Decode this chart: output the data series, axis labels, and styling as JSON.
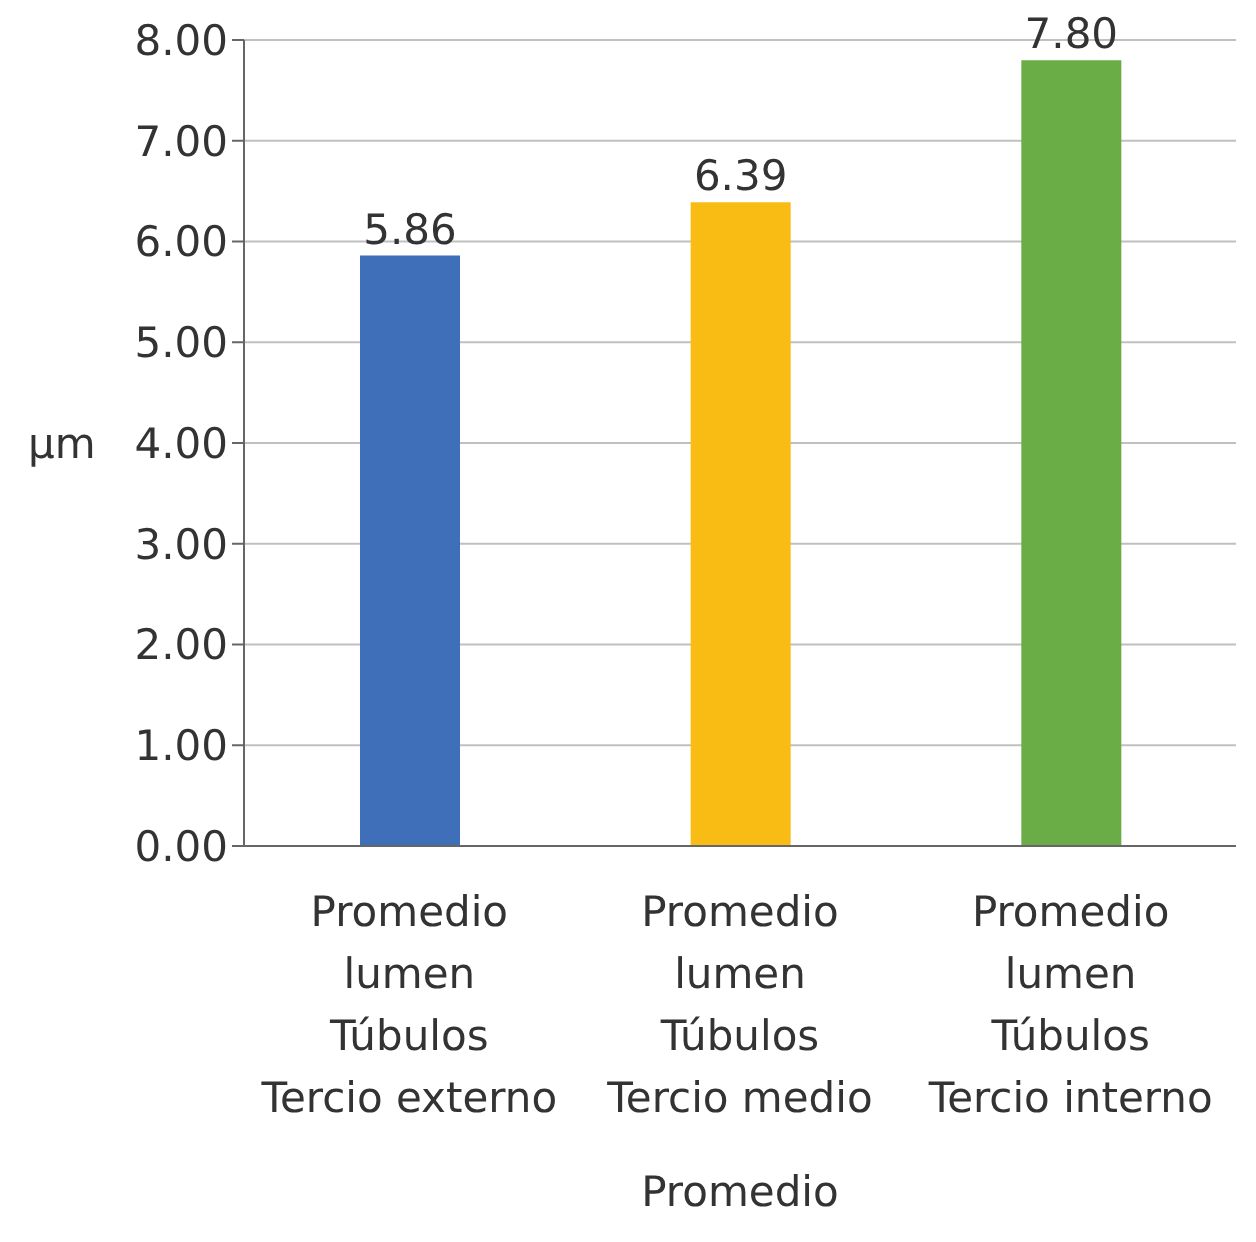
{
  "chart_data": {
    "type": "bar",
    "xlabel": "Promedio",
    "ylabel": "µm",
    "categories": [
      "Promedio\nlumen\nTúbulos\nTercio externo",
      "Promedio\nlumen\nTúbulos\nTercio medio",
      "Promedio\nlumen\nTúbulos\nTercio interno"
    ],
    "values": [
      5.86,
      6.39,
      7.8
    ],
    "value_labels": [
      "5.86",
      "6.39",
      "7.80"
    ],
    "colors": [
      "#3f6fb8",
      "#f9bc15",
      "#6aac46"
    ],
    "ylim": [
      0,
      8
    ],
    "yticks": [
      {
        "value": 0,
        "label": "0.00"
      },
      {
        "value": 1,
        "label": "1.00"
      },
      {
        "value": 2,
        "label": "2.00"
      },
      {
        "value": 3,
        "label": "3.00"
      },
      {
        "value": 4,
        "label": "4.00"
      },
      {
        "value": 5,
        "label": "5.00"
      },
      {
        "value": 6,
        "label": "6.00"
      },
      {
        "value": 7,
        "label": "7.00"
      },
      {
        "value": 8,
        "label": "8.00"
      }
    ],
    "grid": "y"
  }
}
